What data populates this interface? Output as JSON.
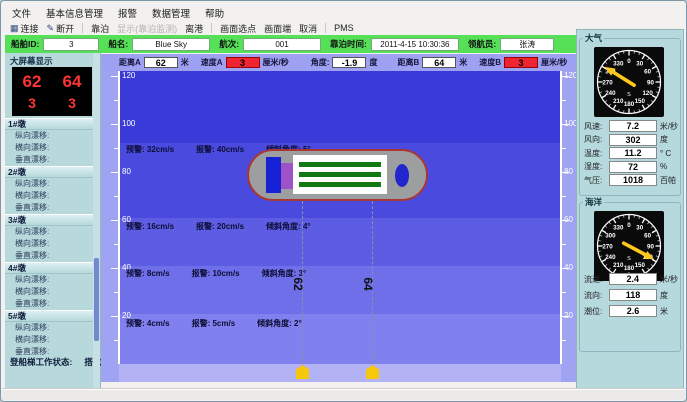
{
  "menu": {
    "items": [
      "文件",
      "基本信息管理",
      "报警",
      "数据管理",
      "帮助"
    ]
  },
  "toolbar": {
    "items": [
      {
        "label": "连接",
        "icon": "connect-icon",
        "disabled": false
      },
      {
        "label": "断开",
        "icon": "disconnect-icon",
        "disabled": false
      },
      {
        "label": "靠泊",
        "disabled": false
      },
      {
        "label": "显示(靠泊监测)",
        "disabled": true
      },
      {
        "label": "离港",
        "disabled": false
      },
      {
        "label": "画面选点",
        "disabled": false
      },
      {
        "label": "画面端",
        "disabled": false
      },
      {
        "label": "取消",
        "disabled": false
      },
      {
        "label": "PMS",
        "disabled": false
      }
    ],
    "separators_after": [
      1,
      4,
      7
    ]
  },
  "info_bar": {
    "fields": [
      {
        "label": "船舶ID:",
        "value": "3"
      },
      {
        "label": "船名:",
        "value": "Blue Sky"
      },
      {
        "label": "航次:",
        "value": "001"
      },
      {
        "label": "靠泊时间:",
        "value": "2011-4-15 10:30:36"
      },
      {
        "label": "领航员:",
        "value": "张涛"
      }
    ]
  },
  "left_panel": {
    "header": "大屏幕显示",
    "display": {
      "values": [
        [
          "62",
          "64"
        ],
        [
          "3",
          "3"
        ]
      ]
    },
    "sections": [
      {
        "title": "1#墩",
        "items": [
          "纵向漂移:",
          "横向漂移:",
          "垂直漂移:"
        ]
      },
      {
        "title": "2#墩",
        "items": [
          "纵向漂移:",
          "横向漂移:",
          "垂直漂移:"
        ]
      },
      {
        "title": "3#墩",
        "items": [
          "纵向漂移:",
          "横向漂移:",
          "垂直漂移:"
        ]
      },
      {
        "title": "4#墩",
        "items": [
          "纵向漂移:",
          "横向漂移:",
          "垂直漂移:"
        ]
      },
      {
        "title": "5#墩",
        "items": [
          "纵向漂移:",
          "横向漂移:",
          "垂直漂移:"
        ]
      }
    ],
    "gangway": {
      "label": "登船梯工作状态:",
      "value": "搭舷"
    }
  },
  "chart": {
    "params": [
      {
        "label": "距离A",
        "value": "62",
        "unit": "米",
        "alarm": false
      },
      {
        "label": "速度A",
        "value": "3",
        "unit": "厘米/秒",
        "alarm": true
      },
      {
        "label": "角度:",
        "value": "-1.9",
        "unit": "度",
        "alarm": false
      },
      {
        "label": "距离B",
        "value": "64",
        "unit": "米",
        "alarm": false
      },
      {
        "label": "速度B",
        "value": "3",
        "unit": "厘米/秒",
        "alarm": true
      }
    ],
    "axis": {
      "ticks": [
        "120",
        "100",
        "80",
        "60",
        "40",
        "20"
      ]
    },
    "alerts": [
      {
        "warn": "预警: 32cm/s",
        "alarm": "报警: 40cm/s",
        "tilt": "倾斜角度: 5°"
      },
      {
        "warn": "预警: 16cm/s",
        "alarm": "报警: 20cm/s",
        "tilt": "倾斜角度: 4°"
      },
      {
        "warn": "预警: 8cm/s",
        "alarm": "报警: 10cm/s",
        "tilt": "倾斜角度: 3°"
      },
      {
        "warn": "预警: 4cm/s",
        "alarm": "报警: 5cm/s",
        "tilt": "倾斜角度: 2°"
      }
    ],
    "markers": [
      {
        "label": "62"
      },
      {
        "label": "64"
      }
    ]
  },
  "right_panel": {
    "atmosphere": {
      "title": "大气",
      "gauge": {
        "numbers": [
          0,
          30,
          60,
          90,
          120,
          150,
          180,
          210,
          240,
          270,
          300,
          330
        ],
        "south_label": "S",
        "pointer_deg": 302
      },
      "rows": [
        {
          "label": "风速:",
          "value": "7.2",
          "unit": "米/秒"
        },
        {
          "label": "风向:",
          "value": "302",
          "unit": "度"
        },
        {
          "label": "温度:",
          "value": "11.2",
          "unit": "° C"
        },
        {
          "label": "湿度:",
          "value": "72",
          "unit": "%"
        },
        {
          "label": "气压:",
          "value": "1018",
          "unit": "百帕"
        }
      ]
    },
    "ocean": {
      "title": "海洋",
      "gauge": {
        "numbers": [
          0,
          30,
          60,
          90,
          120,
          150,
          180,
          210,
          240,
          270,
          300,
          330
        ],
        "south_label": "S",
        "pointer_deg": 118
      },
      "rows": [
        {
          "label": "流速:",
          "value": "2.4",
          "unit": "米/秒"
        },
        {
          "label": "流向:",
          "value": "118",
          "unit": "度"
        },
        {
          "label": "潮位:",
          "value": "2.6",
          "unit": "米"
        }
      ]
    }
  },
  "colors": {
    "info_green": "#55e058",
    "alarm_red": "#ee2433",
    "display_red": "#ff3434",
    "marker_yellow": "#f6c70a",
    "pointer_yellow": "#fec81c",
    "band_blues": [
      "#3a3ad8",
      "#4a4adf",
      "#5d5de4",
      "#6f6fe9",
      "#8080ee",
      "#b2b2f5"
    ]
  }
}
